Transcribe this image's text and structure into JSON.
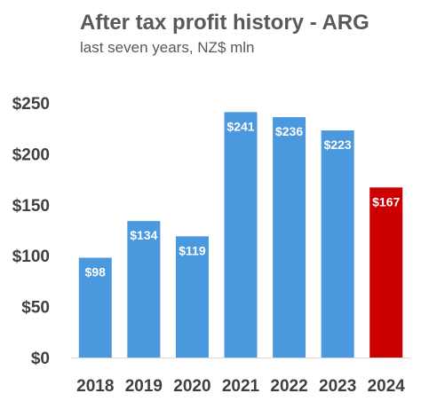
{
  "chart_data": {
    "type": "bar",
    "title": "After tax profit history - ARG",
    "subtitle": "last seven years, NZ$ mln",
    "categories": [
      "2018",
      "2019",
      "2020",
      "2021",
      "2022",
      "2023",
      "2024"
    ],
    "values": [
      98,
      134,
      119,
      241,
      236,
      223,
      167
    ],
    "data_labels": [
      "$98",
      "$134",
      "$119",
      "$241",
      "$236",
      "$223",
      "$167"
    ],
    "y_ticks": [
      0,
      50,
      100,
      150,
      200,
      250
    ],
    "y_tick_labels": [
      "$0",
      "$50",
      "$100",
      "$150",
      "$200",
      "$250"
    ],
    "ylim": [
      0,
      250
    ],
    "xlabel": "",
    "ylabel": "",
    "grid": false,
    "legend": "none",
    "colors": {
      "bar": "#4a98de",
      "highlight": "#cc0000",
      "highlight_index": 6,
      "axis": "#d9d9d9"
    }
  }
}
